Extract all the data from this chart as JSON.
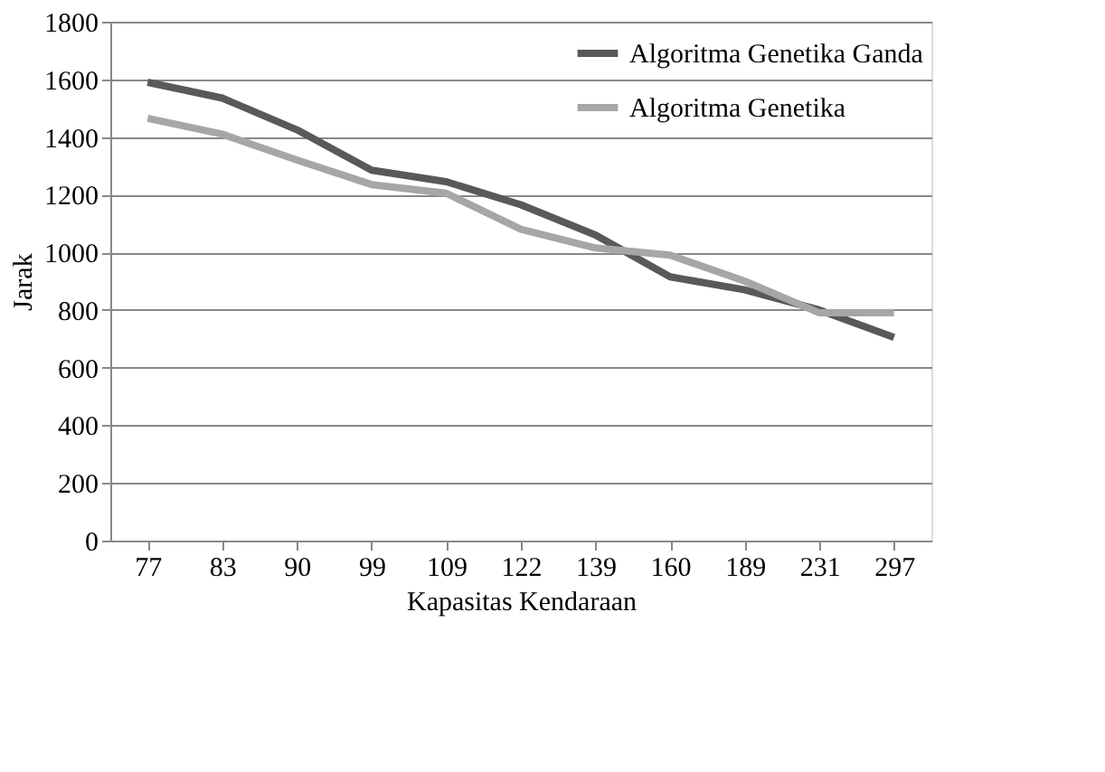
{
  "chart_data": {
    "type": "line",
    "xlabel": "Kapasitas Kendaraan",
    "ylabel": "Jarak",
    "categories": [
      "77",
      "83",
      "90",
      "99",
      "109",
      "122",
      "139",
      "160",
      "189",
      "231",
      "297"
    ],
    "series": [
      {
        "name": "Algoritma Genetika Ganda",
        "color": "#595959",
        "values": [
          1590,
          1535,
          1425,
          1285,
          1245,
          1165,
          1060,
          915,
          870,
          800,
          705
        ]
      },
      {
        "name": "Algoritma Genetika",
        "color": "#a6a6a6",
        "values": [
          1465,
          1410,
          1320,
          1235,
          1205,
          1080,
          1015,
          990,
          900,
          790,
          790
        ]
      }
    ],
    "ylim": [
      0,
      1800
    ],
    "yticks": [
      0,
      200,
      400,
      600,
      800,
      1000,
      1200,
      1400,
      1600,
      1800
    ],
    "grid": "y",
    "legend": "top right",
    "marker": "none",
    "line_style": "solid"
  }
}
